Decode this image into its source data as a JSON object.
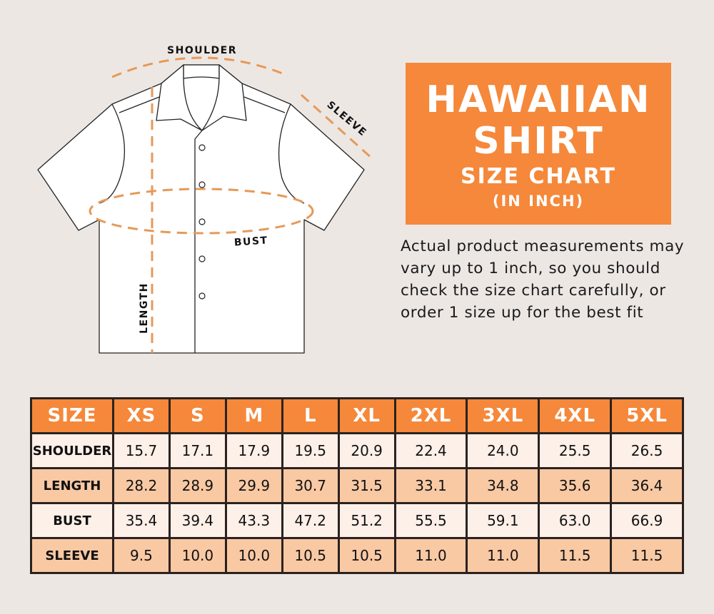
{
  "colors": {
    "accent": "#f5883a",
    "row_light": "#fdf0e8",
    "row_dark": "#f9c9a4",
    "background": "#ede7e4"
  },
  "diagram": {
    "labels": {
      "shoulder": "SHOULDER",
      "sleeve": "SLEEVE",
      "bust": "BUST",
      "length": "LENGTH"
    }
  },
  "title": {
    "line1": "HAWAIIAN",
    "line2": "SHIRT",
    "line3": "SIZE CHART",
    "line4": "(IN INCH)"
  },
  "note": "Actual product measurements may vary up to 1 inch, so you should check the size chart carefully, or order 1 size up for the best fit",
  "table": {
    "headers": [
      "SIZE",
      "XS",
      "S",
      "M",
      "L",
      "XL",
      "2XL",
      "3XL",
      "4XL",
      "5XL"
    ],
    "rows": [
      {
        "label": "SHOULDER",
        "values": [
          "15.7",
          "17.1",
          "17.9",
          "19.5",
          "20.9",
          "22.4",
          "24.0",
          "25.5",
          "26.5"
        ]
      },
      {
        "label": "LENGTH",
        "values": [
          "28.2",
          "28.9",
          "29.9",
          "30.7",
          "31.5",
          "33.1",
          "34.8",
          "35.6",
          "36.4"
        ]
      },
      {
        "label": "BUST",
        "values": [
          "35.4",
          "39.4",
          "43.3",
          "47.2",
          "51.2",
          "55.5",
          "59.1",
          "63.0",
          "66.9"
        ]
      },
      {
        "label": "SLEEVE",
        "values": [
          "9.5",
          "10.0",
          "10.0",
          "10.5",
          "10.5",
          "11.0",
          "11.0",
          "11.5",
          "11.5"
        ]
      }
    ]
  }
}
